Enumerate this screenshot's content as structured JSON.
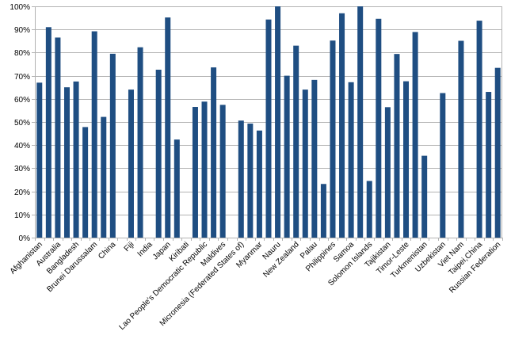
{
  "chart_data": {
    "type": "bar",
    "title": "",
    "xlabel": "",
    "ylabel": "",
    "ylim": [
      0,
      1
    ],
    "yticks": [
      "0%",
      "10%",
      "20%",
      "30%",
      "40%",
      "50%",
      "60%",
      "70%",
      "80%",
      "90%",
      "100%"
    ],
    "grid": true,
    "legend": "none",
    "bar_color": "#1f4e82",
    "categories": [
      "Afghanistan",
      "",
      "Australia",
      "",
      "Bangladesh",
      "",
      "Brunei Darussalam",
      "",
      "China",
      "",
      "Fiji",
      "",
      "India",
      "",
      "Japan",
      "",
      "Kiribati",
      "",
      "Lao People's Democratic Republic",
      "",
      "Maldives",
      "",
      "Micronesia (Federated States of)",
      "",
      "Myanmar",
      "",
      "Nauru",
      "",
      "New Zealand",
      "",
      "Palau",
      "",
      "Philippines",
      "",
      "Samoa",
      "",
      "Solomon Islands",
      "",
      "Tajikistan",
      "",
      "Timor-Leste",
      "",
      "Turkmenistan",
      "",
      "Uzbekistan",
      "",
      "Viet Nam",
      "",
      "Taipei,China",
      "",
      "Russian Federation"
    ],
    "values": [
      0.67,
      0.91,
      0.865,
      0.65,
      0.675,
      0.478,
      0.892,
      0.522,
      0.795,
      null,
      0.64,
      0.823,
      null,
      0.726,
      0.952,
      0.424,
      null,
      0.565,
      0.588,
      0.736,
      0.574,
      null,
      0.506,
      0.493,
      0.463,
      0.943,
      1.0,
      0.7,
      0.83,
      0.64,
      0.682,
      0.232,
      0.852,
      0.97,
      0.672,
      1.0,
      0.245,
      0.946,
      0.564,
      0.794,
      0.676,
      0.889,
      0.354,
      null,
      0.625,
      null,
      0.851,
      null,
      0.938,
      0.63,
      0.734
    ]
  }
}
